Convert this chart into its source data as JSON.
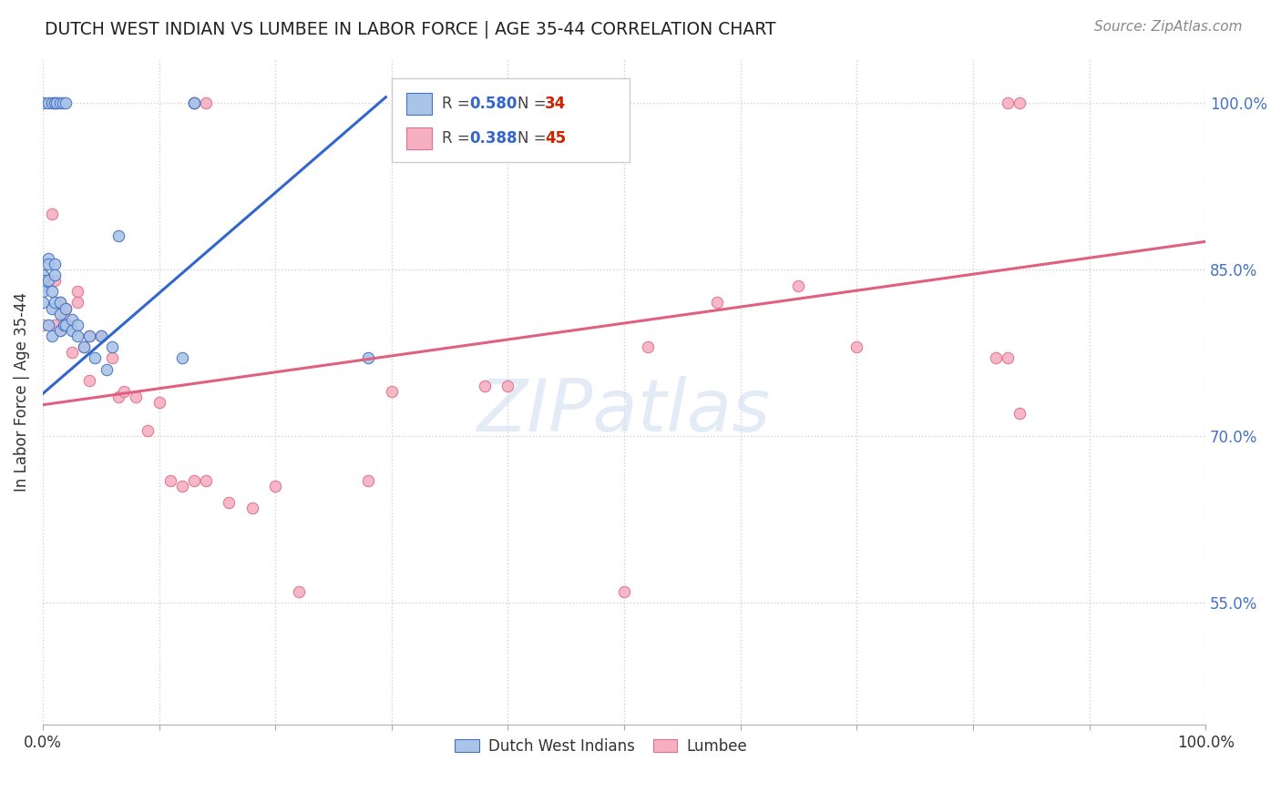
{
  "title": "DUTCH WEST INDIAN VS LUMBEE IN LABOR FORCE | AGE 35-44 CORRELATION CHART",
  "source": "Source: ZipAtlas.com",
  "ylabel": "In Labor Force | Age 35-44",
  "xlim": [
    0.0,
    1.0
  ],
  "ylim": [
    0.44,
    1.04
  ],
  "x_ticks": [
    0.0,
    0.1,
    0.2,
    0.3,
    0.4,
    0.5,
    0.6,
    0.7,
    0.8,
    0.9,
    1.0
  ],
  "x_tick_labels": [
    "0.0%",
    "",
    "",
    "",
    "",
    "",
    "",
    "",
    "",
    "",
    "100.0%"
  ],
  "y_ticks": [
    0.55,
    0.7,
    0.85,
    1.0
  ],
  "y_tick_labels": [
    "55.0%",
    "70.0%",
    "85.0%",
    "100.0%"
  ],
  "blue_R": 0.58,
  "blue_N": 34,
  "pink_R": 0.388,
  "pink_N": 45,
  "blue_color": "#aac4e8",
  "pink_color": "#f5afc0",
  "blue_edge_color": "#4472c4",
  "pink_edge_color": "#e07090",
  "blue_line_color": "#3366cc",
  "pink_line_color": "#e06080",
  "blue_x": [
    0.0,
    0.0,
    0.0,
    0.0,
    0.0,
    0.005,
    0.005,
    0.005,
    0.005,
    0.008,
    0.008,
    0.008,
    0.01,
    0.01,
    0.01,
    0.015,
    0.015,
    0.015,
    0.018,
    0.02,
    0.02,
    0.025,
    0.025,
    0.03,
    0.03,
    0.035,
    0.04,
    0.045,
    0.05,
    0.055,
    0.06,
    0.065,
    0.12,
    0.28
  ],
  "blue_y": [
    0.845,
    0.84,
    0.835,
    0.83,
    0.82,
    0.86,
    0.855,
    0.84,
    0.8,
    0.83,
    0.815,
    0.79,
    0.855,
    0.845,
    0.82,
    0.82,
    0.81,
    0.795,
    0.8,
    0.815,
    0.8,
    0.805,
    0.795,
    0.8,
    0.79,
    0.78,
    0.79,
    0.77,
    0.79,
    0.76,
    0.78,
    0.88,
    0.77,
    0.77
  ],
  "blue_y_top": [
    1.0,
    1.0,
    1.0,
    1.0,
    1.0,
    1.0,
    1.0,
    1.0,
    1.0,
    1.0
  ],
  "blue_x_top": [
    0.0,
    0.005,
    0.008,
    0.01,
    0.012,
    0.015,
    0.017,
    0.02,
    0.13,
    0.13
  ],
  "pink_x": [
    0.0,
    0.0,
    0.005,
    0.008,
    0.01,
    0.01,
    0.015,
    0.015,
    0.018,
    0.02,
    0.02,
    0.022,
    0.025,
    0.03,
    0.03,
    0.035,
    0.04,
    0.04,
    0.05,
    0.06,
    0.065,
    0.07,
    0.08,
    0.09,
    0.1,
    0.11,
    0.12,
    0.13,
    0.14,
    0.16,
    0.18,
    0.2,
    0.22,
    0.28,
    0.3,
    0.38,
    0.4,
    0.5,
    0.52,
    0.58,
    0.65,
    0.7,
    0.82,
    0.83,
    0.84
  ],
  "pink_y": [
    0.845,
    0.8,
    0.84,
    0.9,
    0.84,
    0.8,
    0.82,
    0.795,
    0.81,
    0.815,
    0.8,
    0.8,
    0.775,
    0.83,
    0.82,
    0.78,
    0.79,
    0.75,
    0.79,
    0.77,
    0.735,
    0.74,
    0.735,
    0.705,
    0.73,
    0.66,
    0.655,
    0.66,
    0.66,
    0.64,
    0.635,
    0.655,
    0.56,
    0.66,
    0.74,
    0.745,
    0.745,
    0.56,
    0.78,
    0.82,
    0.835,
    0.78,
    0.77,
    0.77,
    0.72
  ],
  "blue_line_x0": 0.0,
  "blue_line_y0": 0.738,
  "blue_line_x1": 0.295,
  "blue_line_y1": 1.005,
  "pink_line_x0": 0.0,
  "pink_line_y0": 0.728,
  "pink_line_x1": 1.0,
  "pink_line_y1": 0.875,
  "watermark_text": "ZIPatlas",
  "watermark_color": "#ccddf0",
  "background_color": "#ffffff",
  "grid_color": "#cccccc",
  "y_label_color": "#4472c4",
  "title_color": "#222222",
  "marker_size": 80
}
